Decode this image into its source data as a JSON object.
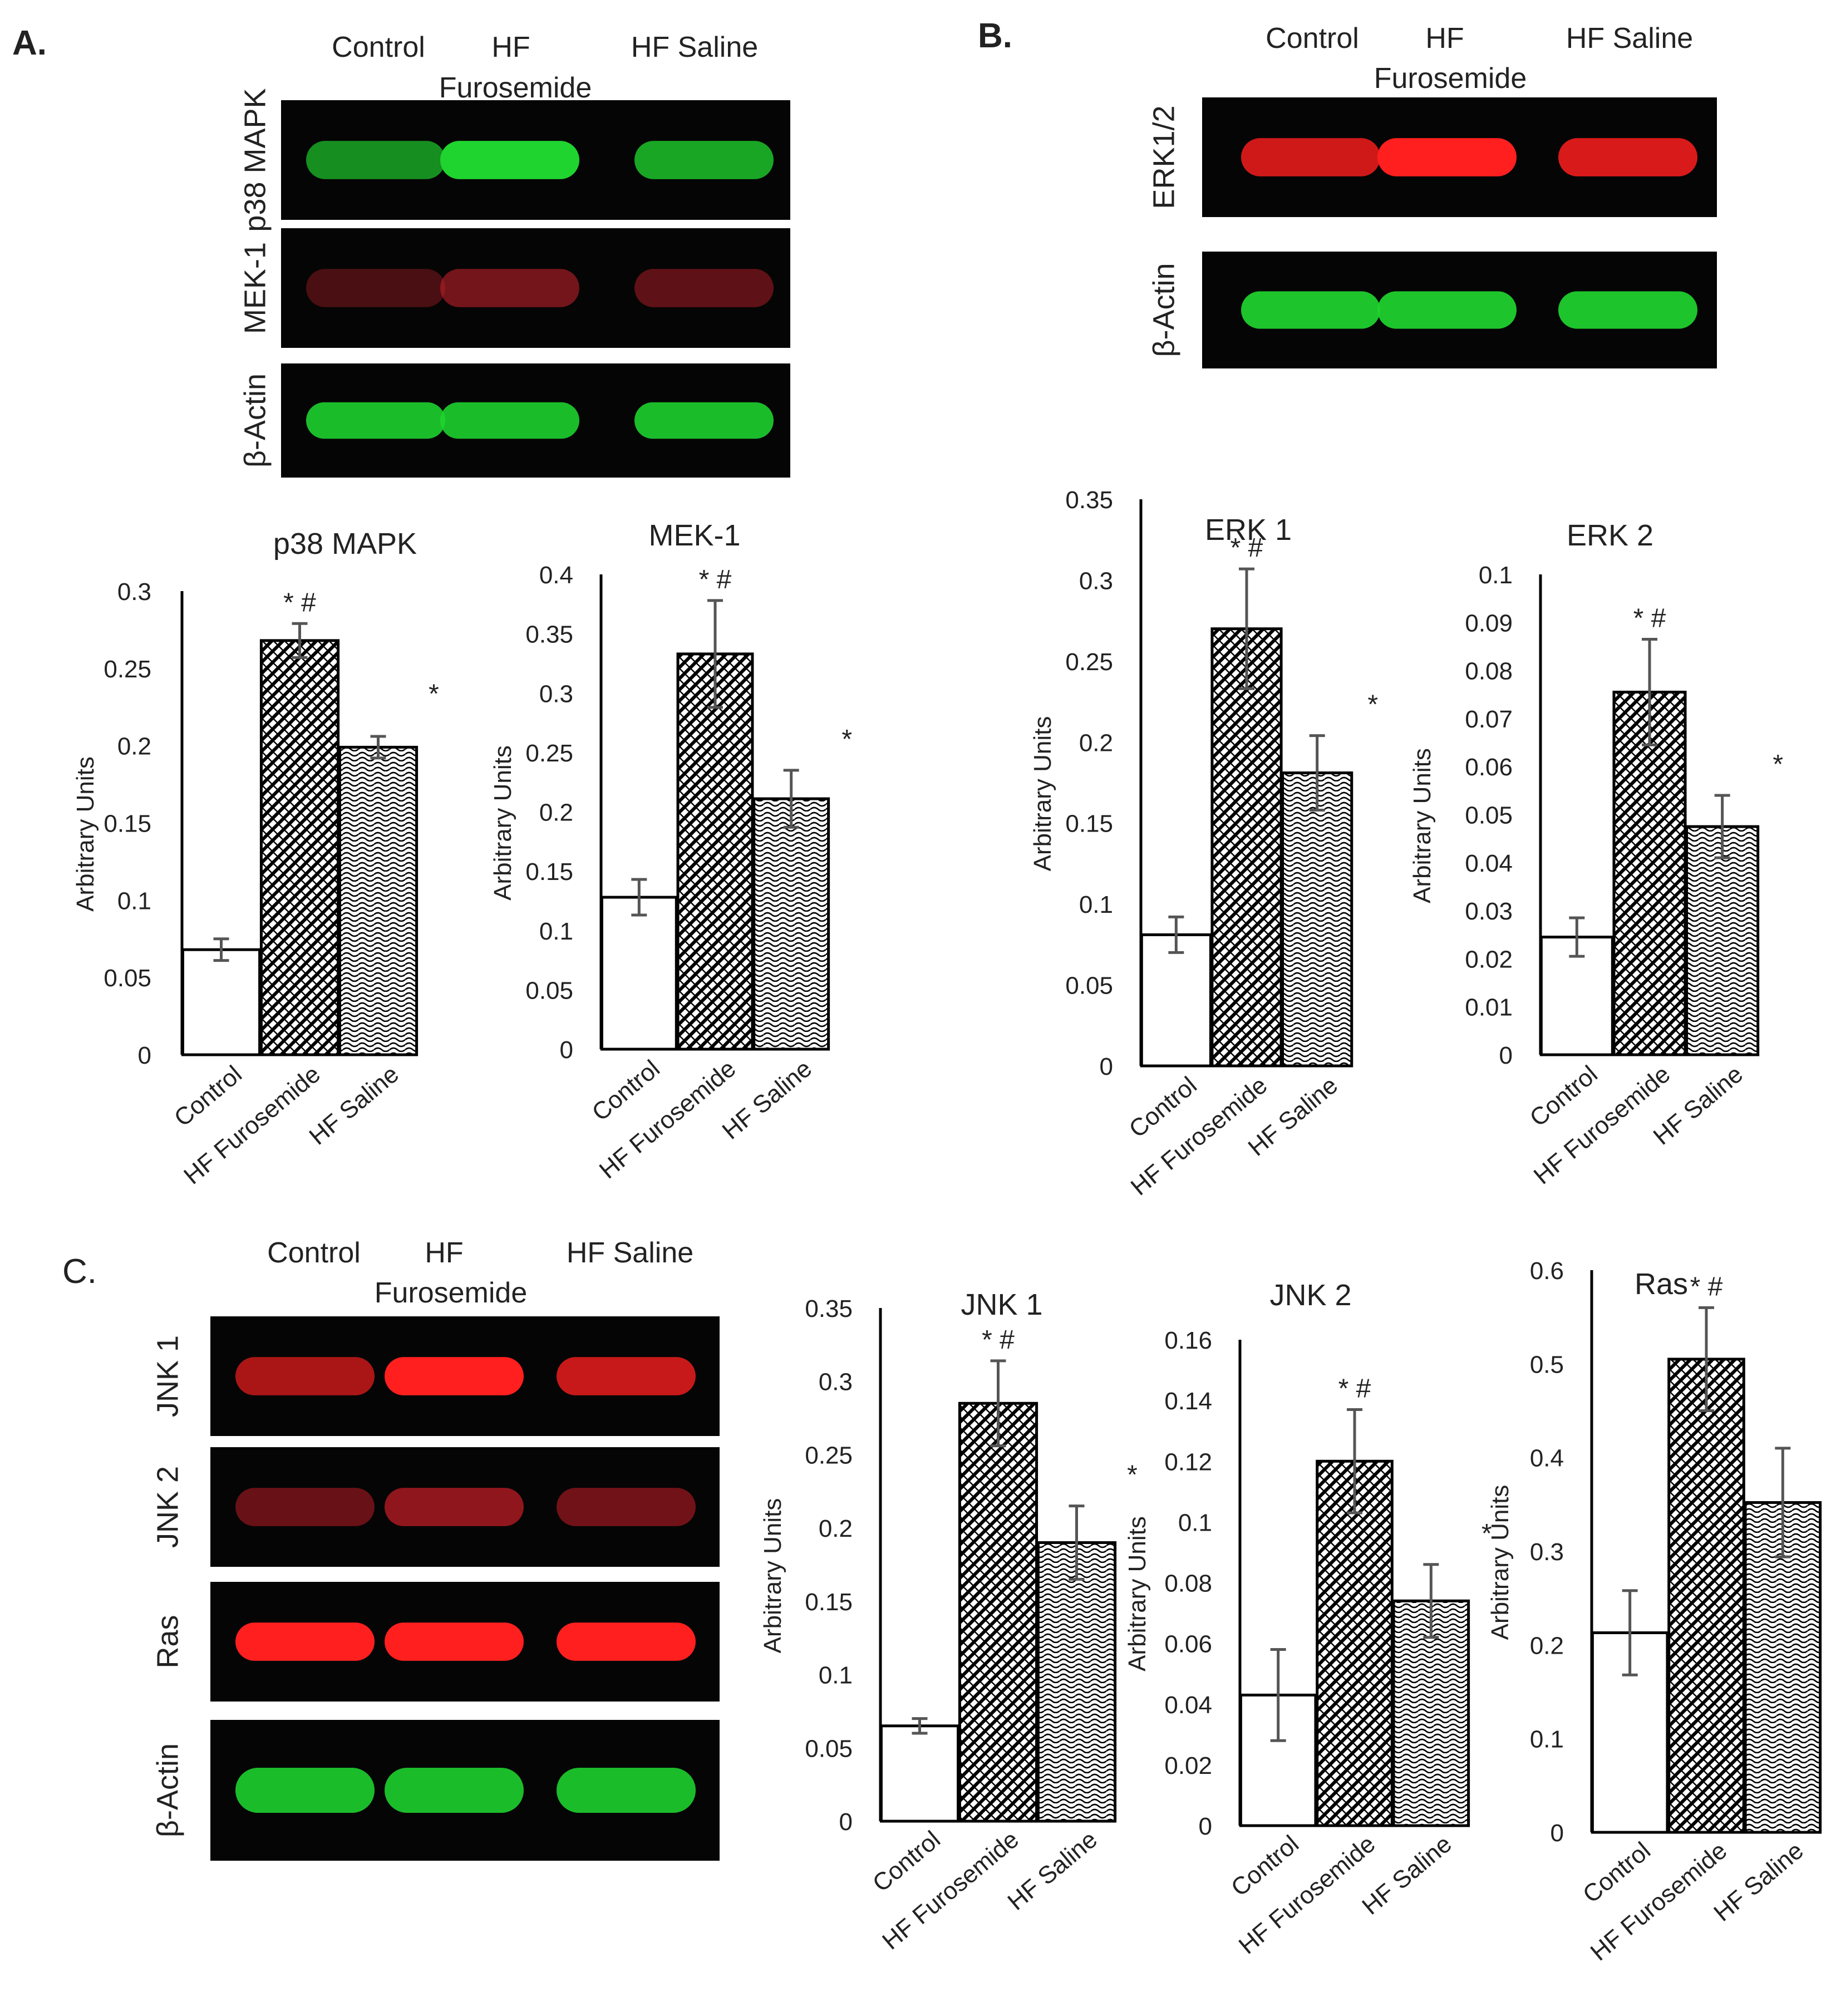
{
  "groups": [
    "Control",
    "HF Furosemide",
    "HF Saline"
  ],
  "panel_labels": {
    "a": "A.",
    "b": "B.",
    "c": "C."
  },
  "blot_lane_headers": {
    "control": "Control",
    "hf_line1": "HF",
    "hf_line2": "Furosemide",
    "saline": "HF Saline"
  },
  "blots": {
    "a": [
      {
        "label": "p38 MAPK",
        "color": "#1fd42f",
        "intensity": [
          0.55,
          1.0,
          0.7
        ]
      },
      {
        "label": "MEK-1",
        "color": "#c2202a",
        "intensity": [
          0.15,
          0.45,
          0.3
        ]
      },
      {
        "label": "β-Actin",
        "color": "#1fd42f",
        "intensity": [
          0.85,
          0.85,
          0.85
        ]
      }
    ],
    "b": [
      {
        "label": "ERK1/2",
        "color": "#ff1f1f",
        "intensity": [
          0.75,
          1.0,
          0.8
        ]
      },
      {
        "label": "β-Actin",
        "color": "#1fd42f",
        "intensity": [
          0.9,
          0.9,
          0.9
        ]
      }
    ],
    "c": [
      {
        "label": "JNK 1",
        "color": "#ff1f1f",
        "intensity": [
          0.55,
          1.0,
          0.7
        ]
      },
      {
        "label": "JNK 2",
        "color": "#d8202a",
        "intensity": [
          0.3,
          0.55,
          0.35
        ]
      },
      {
        "label": "Ras",
        "color": "#ff1f1f",
        "intensity": [
          1.0,
          1.0,
          1.0
        ]
      },
      {
        "label": "β-Actin",
        "color": "#1fd42f",
        "intensity": [
          0.85,
          0.85,
          0.85
        ]
      }
    ]
  },
  "colors": {
    "bar_stroke": "#000000",
    "errorbar": "#555555",
    "axis": "#000000"
  },
  "chart_data": [
    {
      "type": "bar",
      "title": "p38 MAPK",
      "ylabel": "Arbitrary Units",
      "categories": [
        "Control",
        "HF Furosemide",
        "HF Saline"
      ],
      "values": [
        0.068,
        0.268,
        0.199
      ],
      "errors": [
        0.007,
        0.011,
        0.007
      ],
      "ylim": [
        0,
        0.3
      ],
      "yticks": [
        "0",
        "0.05",
        "0.1",
        "0.15",
        "0.2",
        "0.25",
        "0.3"
      ],
      "annotations": [
        "",
        "* #",
        "*"
      ],
      "patterns": [
        "none",
        "diag",
        "wave"
      ]
    },
    {
      "type": "bar",
      "title": "MEK-1",
      "ylabel": "Arbitrary Units",
      "categories": [
        "Control",
        "HF Furosemide",
        "HF Saline"
      ],
      "values": [
        0.128,
        0.333,
        0.211
      ],
      "errors": [
        0.015,
        0.045,
        0.024
      ],
      "ylim": [
        0,
        0.4
      ],
      "yticks": [
        "0",
        "0.05",
        "0.1",
        "0.15",
        "0.2",
        "0.25",
        "0.3",
        "0.35",
        "0.4"
      ],
      "annotations": [
        "",
        "* #",
        "*"
      ],
      "patterns": [
        "none",
        "diag",
        "wave"
      ]
    },
    {
      "type": "bar",
      "title": "ERK 1",
      "ylabel": "Arbitrary Units",
      "categories": [
        "Control",
        "HF Furosemide",
        "HF Saline"
      ],
      "values": [
        0.081,
        0.27,
        0.181
      ],
      "errors": [
        0.011,
        0.037,
        0.023
      ],
      "ylim": [
        0,
        0.35
      ],
      "yticks": [
        "0",
        "0.05",
        "0.1",
        "0.15",
        "0.2",
        "0.25",
        "0.3",
        "0.35"
      ],
      "annotations": [
        "",
        "* #",
        "*"
      ],
      "patterns": [
        "none",
        "diag",
        "wave"
      ]
    },
    {
      "type": "bar",
      "title": "ERK 2",
      "ylabel": "Arbitrary Units",
      "categories": [
        "Control",
        "HF Furosemide",
        "HF Saline"
      ],
      "values": [
        0.0245,
        0.0755,
        0.0475
      ],
      "errors": [
        0.004,
        0.011,
        0.0065
      ],
      "ylim": [
        0,
        0.1
      ],
      "yticks": [
        "0",
        "0.01",
        "0.02",
        "0.03",
        "0.04",
        "0.05",
        "0.06",
        "0.07",
        "0.08",
        "0.09",
        "0.1"
      ],
      "annotations": [
        "",
        "* #",
        "*"
      ],
      "patterns": [
        "none",
        "diag",
        "wave"
      ]
    },
    {
      "type": "bar",
      "title": "JNK 1",
      "ylabel": "Arbitrary Units",
      "categories": [
        "Control",
        "HF Furosemide",
        "HF Saline"
      ],
      "values": [
        0.065,
        0.285,
        0.19
      ],
      "errors": [
        0.005,
        0.029,
        0.025
      ],
      "ylim": [
        0,
        0.35
      ],
      "yticks": [
        "0",
        "0.05",
        "0.1",
        "0.15",
        "0.2",
        "0.25",
        "0.3",
        "0.35"
      ],
      "annotations": [
        "",
        "* #",
        "*"
      ],
      "patterns": [
        "none",
        "diag",
        "wave"
      ]
    },
    {
      "type": "bar",
      "title": "JNK 2",
      "ylabel": "Arbitrary Units",
      "categories": [
        "Control",
        "HF Furosemide",
        "HF Saline"
      ],
      "values": [
        0.043,
        0.12,
        0.074
      ],
      "errors": [
        0.015,
        0.017,
        0.012
      ],
      "ylim": [
        0,
        0.16
      ],
      "yticks": [
        "0",
        "0.02",
        "0.04",
        "0.06",
        "0.08",
        "0.1",
        "0.12",
        "0.14",
        "0.16"
      ],
      "annotations": [
        "",
        "* #",
        "*"
      ],
      "patterns": [
        "none",
        "diag",
        "wave"
      ]
    },
    {
      "type": "bar",
      "title": "Ras",
      "ylabel": "Arbitrary Units",
      "categories": [
        "Control",
        "HF Furosemide",
        "HF Saline"
      ],
      "values": [
        0.213,
        0.505,
        0.352
      ],
      "errors": [
        0.045,
        0.055,
        0.058
      ],
      "ylim": [
        0,
        0.6
      ],
      "yticks": [
        "0",
        "0.1",
        "0.2",
        "0.3",
        "0.4",
        "0.5",
        "0.6"
      ],
      "annotations": [
        "",
        "* #",
        "*"
      ],
      "patterns": [
        "none",
        "diag",
        "wave"
      ]
    }
  ]
}
